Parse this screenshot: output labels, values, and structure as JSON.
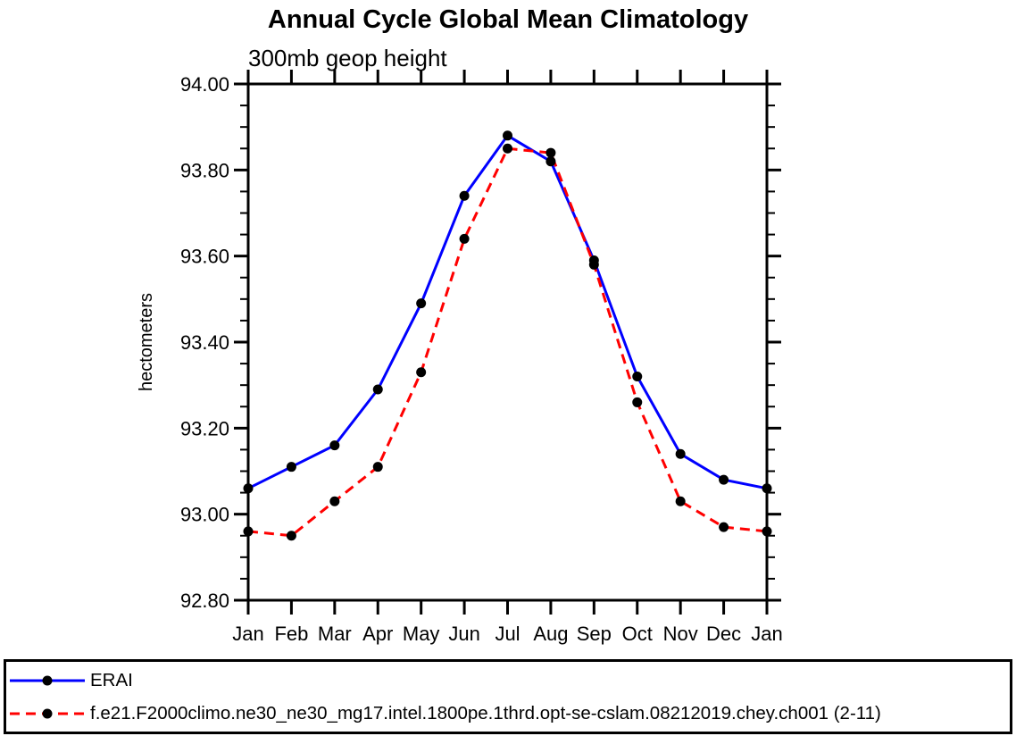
{
  "header": {
    "title": "Annual Cycle Global Mean Climatology",
    "subtitle": "300mb geop height"
  },
  "chart_data": {
    "type": "line",
    "title": "Annual Cycle Global Mean Climatology",
    "subtitle": "300mb geop height",
    "ylabel": "hectometers",
    "xlabel": "",
    "categories": [
      "Jan",
      "Feb",
      "Mar",
      "Apr",
      "May",
      "Jun",
      "Jul",
      "Aug",
      "Sep",
      "Oct",
      "Nov",
      "Dec",
      "Jan"
    ],
    "series": [
      {
        "name": "ERAI",
        "color": "#0000ff",
        "line_style": "solid",
        "marker": "filled-circle",
        "marker_color": "#000000",
        "values": [
          93.06,
          93.11,
          93.16,
          93.29,
          93.49,
          93.74,
          93.88,
          93.82,
          93.59,
          93.32,
          93.14,
          93.08,
          93.06
        ]
      },
      {
        "name": "f.e21.F2000climo.ne30_ne30_mg17.intel.1800pe.1thrd.opt-se-cslam.08212019.chey.ch001 (2-11)",
        "color": "#ff0000",
        "line_style": "dashed",
        "marker": "filled-circle",
        "marker_color": "#000000",
        "values": [
          92.96,
          92.95,
          93.03,
          93.11,
          93.33,
          93.64,
          93.85,
          93.84,
          93.58,
          93.26,
          93.03,
          92.97,
          92.96
        ]
      }
    ],
    "ylim": [
      92.8,
      94.0
    ],
    "ytick_step": 0.2,
    "yminor_step": 0.05,
    "yticks": [
      "94.00",
      "93.80",
      "93.60",
      "93.40",
      "93.20",
      "93.00",
      "92.80"
    ],
    "grid": "off",
    "legend_position": "bottom-box",
    "axis_color": "#000000",
    "background_color": "#ffffff"
  }
}
